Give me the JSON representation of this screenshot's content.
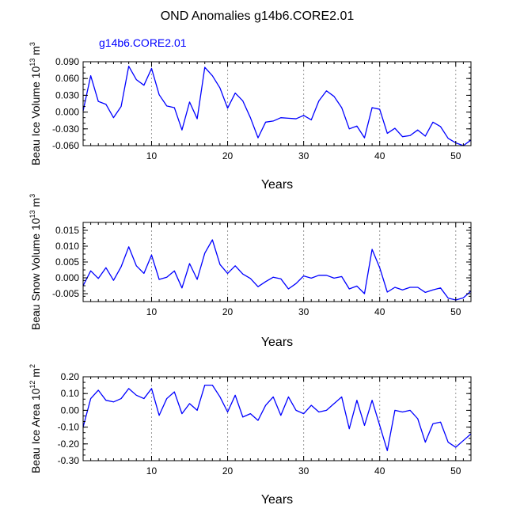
{
  "title": "OND Anomalies g14b6.CORE2.01",
  "colors": {
    "series": "#0000ff",
    "axis": "#000000",
    "grid": "#999999",
    "subtitle": "#0000ff"
  },
  "chart_data": [
    {
      "type": "line",
      "subtitle": "g14b6.CORE2.01",
      "ylabel": {
        "prefix": "Beau Ice Volume 10",
        "exp1": "13",
        "mid": " m",
        "exp2": "3"
      },
      "xlabel": "Years",
      "xlim": [
        1,
        52
      ],
      "ylim": [
        -0.06,
        0.09
      ],
      "yticks": [
        -0.06,
        -0.03,
        0.0,
        0.03,
        0.06,
        0.09
      ],
      "ytick_labels": [
        "-0.060",
        "-0.030",
        "0.000",
        "0.030",
        "0.060",
        "0.090"
      ],
      "xticks": [
        10,
        20,
        30,
        40,
        50
      ],
      "xtick_labels": [
        "10",
        "20",
        "30",
        "40",
        "50"
      ],
      "gridlines_x": [
        10,
        20,
        30,
        40,
        50
      ],
      "x": [
        1,
        2,
        3,
        4,
        5,
        6,
        7,
        8,
        9,
        10,
        11,
        12,
        13,
        14,
        15,
        16,
        17,
        18,
        19,
        20,
        21,
        22,
        23,
        24,
        25,
        26,
        27,
        28,
        29,
        30,
        31,
        32,
        33,
        34,
        35,
        36,
        37,
        38,
        39,
        40,
        41,
        42,
        43,
        44,
        45,
        46,
        47,
        48,
        49,
        50,
        51,
        52
      ],
      "values": [
        0.002,
        0.065,
        0.019,
        0.014,
        -0.01,
        0.01,
        0.082,
        0.058,
        0.048,
        0.078,
        0.031,
        0.011,
        0.008,
        -0.032,
        0.018,
        -0.012,
        0.08,
        0.065,
        0.043,
        0.007,
        0.034,
        0.02,
        -0.01,
        -0.046,
        -0.018,
        -0.016,
        -0.01,
        -0.011,
        -0.012,
        -0.006,
        -0.014,
        0.02,
        0.038,
        0.028,
        0.008,
        -0.03,
        -0.025,
        -0.046,
        0.008,
        0.005,
        -0.038,
        -0.029,
        -0.044,
        -0.042,
        -0.032,
        -0.043,
        -0.018,
        -0.026,
        -0.047,
        -0.055,
        -0.06,
        -0.05
      ]
    },
    {
      "type": "line",
      "ylabel": {
        "prefix": "Beau Snow Volume 10",
        "exp1": "13",
        "mid": " m",
        "exp2": "3"
      },
      "xlabel": "Years",
      "xlim": [
        1,
        52
      ],
      "ylim": [
        -0.0075,
        0.0175
      ],
      "yticks": [
        -0.005,
        0.0,
        0.005,
        0.01,
        0.015
      ],
      "ytick_labels": [
        "-0.005",
        "0.000",
        "0.005",
        "0.010",
        "0.015"
      ],
      "xticks": [
        10,
        20,
        30,
        40,
        50
      ],
      "xtick_labels": [
        "10",
        "20",
        "30",
        "40",
        "50"
      ],
      "gridlines_x": [
        10,
        20,
        30,
        40,
        50
      ],
      "x": [
        1,
        2,
        3,
        4,
        5,
        6,
        7,
        8,
        9,
        10,
        11,
        12,
        13,
        14,
        15,
        16,
        17,
        18,
        19,
        20,
        21,
        22,
        23,
        24,
        25,
        26,
        27,
        28,
        29,
        30,
        31,
        32,
        33,
        34,
        35,
        36,
        37,
        38,
        39,
        40,
        41,
        42,
        43,
        44,
        45,
        46,
        47,
        48,
        49,
        50,
        51,
        52
      ],
      "values": [
        -0.0025,
        0.0022,
        -0.0002,
        0.0032,
        -0.0008,
        0.0035,
        0.0098,
        0.0038,
        0.0014,
        0.0072,
        -0.0005,
        0.0002,
        0.0022,
        -0.0032,
        0.0045,
        -0.0005,
        0.0078,
        0.012,
        0.0042,
        0.0014,
        0.0038,
        0.0012,
        -0.0002,
        -0.0028,
        -0.0012,
        0.0002,
        -0.0003,
        -0.0035,
        -0.0018,
        0.0006,
        -0.0001,
        0.0008,
        0.0008,
        -0.0001,
        0.0004,
        -0.0035,
        -0.0026,
        -0.005,
        0.009,
        0.0032,
        -0.0045,
        -0.003,
        -0.0038,
        -0.003,
        -0.003,
        -0.0046,
        -0.0038,
        -0.0032,
        -0.0064,
        -0.007,
        -0.0063,
        -0.0042
      ]
    },
    {
      "type": "line",
      "ylabel": {
        "prefix": "Beau Ice Area 10",
        "exp1": "12",
        "mid": " m",
        "exp2": "2"
      },
      "xlabel": "Years",
      "xlim": [
        1,
        52
      ],
      "ylim": [
        -0.3,
        0.2
      ],
      "yticks": [
        -0.3,
        -0.2,
        -0.1,
        0.0,
        0.1,
        0.2
      ],
      "ytick_labels": [
        "-0.30",
        "-0.20",
        "-0.10",
        "0.00",
        "0.10",
        "0.20"
      ],
      "xticks": [
        10,
        20,
        30,
        40,
        50
      ],
      "xtick_labels": [
        "10",
        "20",
        "30",
        "40",
        "50"
      ],
      "gridlines_x": [
        10,
        20,
        30,
        40,
        50
      ],
      "x": [
        1,
        2,
        3,
        4,
        5,
        6,
        7,
        8,
        9,
        10,
        11,
        12,
        13,
        14,
        15,
        16,
        17,
        18,
        19,
        20,
        21,
        22,
        23,
        24,
        25,
        26,
        27,
        28,
        29,
        30,
        31,
        32,
        33,
        34,
        35,
        36,
        37,
        38,
        39,
        40,
        41,
        42,
        43,
        44,
        45,
        46,
        47,
        48,
        49,
        50,
        51,
        52
      ],
      "values": [
        -0.1,
        0.07,
        0.12,
        0.06,
        0.05,
        0.07,
        0.13,
        0.09,
        0.07,
        0.13,
        -0.03,
        0.07,
        0.11,
        -0.02,
        0.04,
        0.0,
        0.15,
        0.15,
        0.08,
        -0.01,
        0.09,
        -0.04,
        -0.02,
        -0.06,
        0.03,
        0.08,
        -0.03,
        0.08,
        0.0,
        -0.02,
        0.03,
        -0.01,
        0.0,
        0.04,
        0.08,
        -0.11,
        0.06,
        -0.09,
        0.06,
        -0.09,
        -0.24,
        0.0,
        -0.01,
        0.0,
        -0.05,
        -0.19,
        -0.08,
        -0.07,
        -0.19,
        -0.22,
        -0.18,
        -0.14
      ]
    }
  ]
}
